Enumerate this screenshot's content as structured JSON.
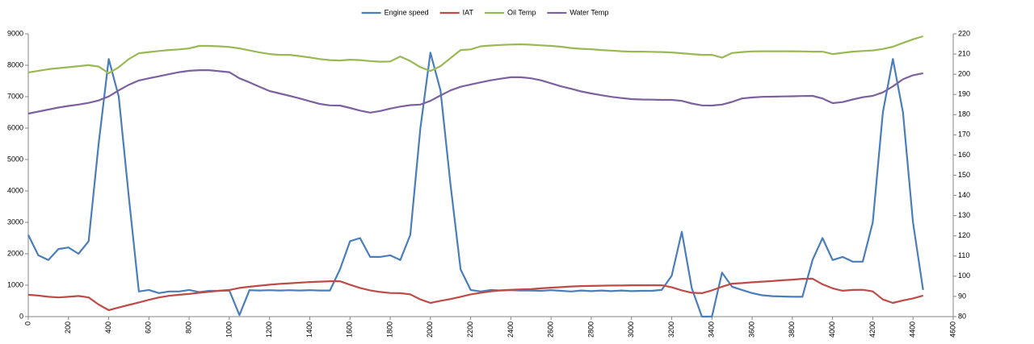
{
  "chart_data": {
    "type": "line",
    "x": [
      0,
      50,
      100,
      150,
      200,
      250,
      300,
      350,
      400,
      450,
      500,
      550,
      600,
      650,
      700,
      750,
      800,
      850,
      900,
      950,
      1000,
      1050,
      1100,
      1150,
      1200,
      1250,
      1300,
      1350,
      1400,
      1450,
      1500,
      1550,
      1600,
      1650,
      1700,
      1750,
      1800,
      1850,
      1900,
      1950,
      2000,
      2050,
      2100,
      2150,
      2200,
      2250,
      2300,
      2350,
      2400,
      2450,
      2500,
      2550,
      2600,
      2650,
      2700,
      2750,
      2800,
      2850,
      2900,
      2950,
      3000,
      3050,
      3100,
      3150,
      3200,
      3250,
      3300,
      3350,
      3400,
      3450,
      3500,
      3550,
      3600,
      3650,
      3700,
      3750,
      3800,
      3850,
      3900,
      3950,
      4000,
      4050,
      4100,
      4150,
      4200,
      4250,
      4300,
      4350,
      4400,
      4450
    ],
    "series": [
      {
        "name": "Engine speed",
        "color": "#4a7ebb",
        "values": [
          2600,
          1950,
          1800,
          2150,
          2200,
          2000,
          2400,
          5500,
          8200,
          7000,
          3800,
          800,
          850,
          750,
          800,
          800,
          850,
          780,
          820,
          820,
          830,
          50,
          840,
          830,
          840,
          830,
          840,
          830,
          840,
          830,
          830,
          1500,
          2400,
          2500,
          1900,
          1900,
          1950,
          1800,
          2600,
          6000,
          8400,
          7200,
          4200,
          1500,
          850,
          800,
          850,
          830,
          840,
          830,
          830,
          820,
          840,
          820,
          800,
          830,
          810,
          830,
          810,
          830,
          810,
          820,
          820,
          850,
          1300,
          2700,
          900,
          0,
          0,
          1400,
          950,
          850,
          750,
          680,
          650,
          640,
          630,
          630,
          1800,
          2500,
          1800,
          1900,
          1750,
          1750,
          3000,
          6500,
          8200,
          6500,
          3000,
          850
        ]
      },
      {
        "name": "IAT",
        "color": "#be4b48",
        "axis": "y2",
        "values": [
          90.8,
          90.4,
          89.8,
          89.5,
          89.8,
          90.2,
          89.5,
          86,
          83.2,
          84.5,
          85.8,
          87,
          88.3,
          89.5,
          90.3,
          90.8,
          91.2,
          91.8,
          92.3,
          92.8,
          93.2,
          94.2,
          94.8,
          95.3,
          95.8,
          96.2,
          96.5,
          96.8,
          97.1,
          97.3,
          97.5,
          97.5,
          95.8,
          94.2,
          93,
          92.2,
          91.7,
          91.6,
          91,
          88.5,
          86.8,
          87.8,
          88.7,
          89.8,
          91,
          91.8,
          92.5,
          93,
          93.3,
          93.5,
          93.6,
          94,
          94.3,
          94.6,
          94.9,
          95.1,
          95.2,
          95.3,
          95.4,
          95.4,
          95.5,
          95.5,
          95.5,
          95.5,
          94.5,
          93,
          91.8,
          91.6,
          93,
          94.8,
          96.3,
          96.6,
          97,
          97.3,
          97.6,
          98,
          98.3,
          98.7,
          98.8,
          96,
          94,
          92.8,
          93.2,
          93.3,
          92.5,
          88.5,
          86.8,
          88,
          89,
          90.4
        ]
      },
      {
        "name": "Oil Temp",
        "color": "#98b954",
        "axis": "y2",
        "values": [
          200.9,
          201.7,
          202.5,
          203,
          203.5,
          204,
          204.5,
          203.8,
          200.5,
          203.5,
          207.5,
          210.4,
          211,
          211.5,
          212,
          212.3,
          212.8,
          214,
          214,
          213.8,
          213.5,
          212.8,
          211.8,
          210.8,
          210,
          209.6,
          209.6,
          209,
          208.3,
          207.5,
          207,
          206.8,
          207.2,
          207,
          206.5,
          206.2,
          206.3,
          208.8,
          206.5,
          203.5,
          201.6,
          204,
          208,
          212,
          212.3,
          213.8,
          214.2,
          214.5,
          214.7,
          214.8,
          214.6,
          214.3,
          214,
          213.6,
          213,
          212.6,
          212.4,
          212,
          211.7,
          211.4,
          211.2,
          211.2,
          211.1,
          211,
          210.8,
          210.4,
          210,
          209.6,
          209.6,
          208.2,
          210.5,
          211,
          211.3,
          211.4,
          211.4,
          211.4,
          211.4,
          211.3,
          211.2,
          211.2,
          210,
          210.6,
          211.2,
          211.5,
          211.8,
          212.5,
          213.6,
          215.5,
          217.3,
          218.8
        ]
      },
      {
        "name": "Water Temp",
        "color": "#7d60a0",
        "axis": "y2",
        "values": [
          180.5,
          181.5,
          182.5,
          183.5,
          184.3,
          185,
          185.8,
          187,
          189,
          192,
          194.8,
          196.9,
          198,
          199,
          200,
          201,
          201.7,
          202,
          202,
          201.5,
          201,
          198,
          196,
          193.8,
          191.7,
          190.5,
          189.3,
          188,
          186.6,
          185.3,
          184.6,
          184.5,
          183.3,
          182,
          181,
          181.8,
          183,
          184,
          184.7,
          185,
          186.8,
          189.5,
          192,
          193.8,
          194.9,
          196,
          197,
          197.8,
          198.5,
          198.5,
          198,
          197,
          195.5,
          194,
          192.8,
          191.5,
          190.5,
          189.6,
          188.8,
          188.2,
          187.7,
          187.5,
          187.4,
          187.3,
          187.3,
          186.8,
          185.5,
          184.6,
          184.5,
          185,
          186.3,
          188,
          188.5,
          188.8,
          188.9,
          189,
          189.1,
          189.2,
          189.3,
          188,
          185.7,
          186.2,
          187.5,
          188.6,
          189.3,
          191,
          194,
          197.5,
          199.5,
          200.5
        ]
      }
    ],
    "xlim": [
      0,
      4600
    ],
    "xticks": [
      0,
      200,
      400,
      600,
      800,
      1000,
      1200,
      1400,
      1600,
      1800,
      2000,
      2200,
      2400,
      2600,
      2800,
      3000,
      3200,
      3400,
      3600,
      3800,
      4000,
      4200,
      4400,
      4600
    ],
    "ylim": [
      0,
      9000
    ],
    "yticks": [
      0,
      1000,
      2000,
      3000,
      4000,
      5000,
      6000,
      7000,
      8000,
      9000
    ],
    "y2lim": [
      80,
      220
    ],
    "y2ticks": [
      80,
      90,
      100,
      110,
      120,
      130,
      140,
      150,
      160,
      170,
      180,
      190,
      200,
      210,
      220
    ],
    "grid": false,
    "legend": "top"
  }
}
